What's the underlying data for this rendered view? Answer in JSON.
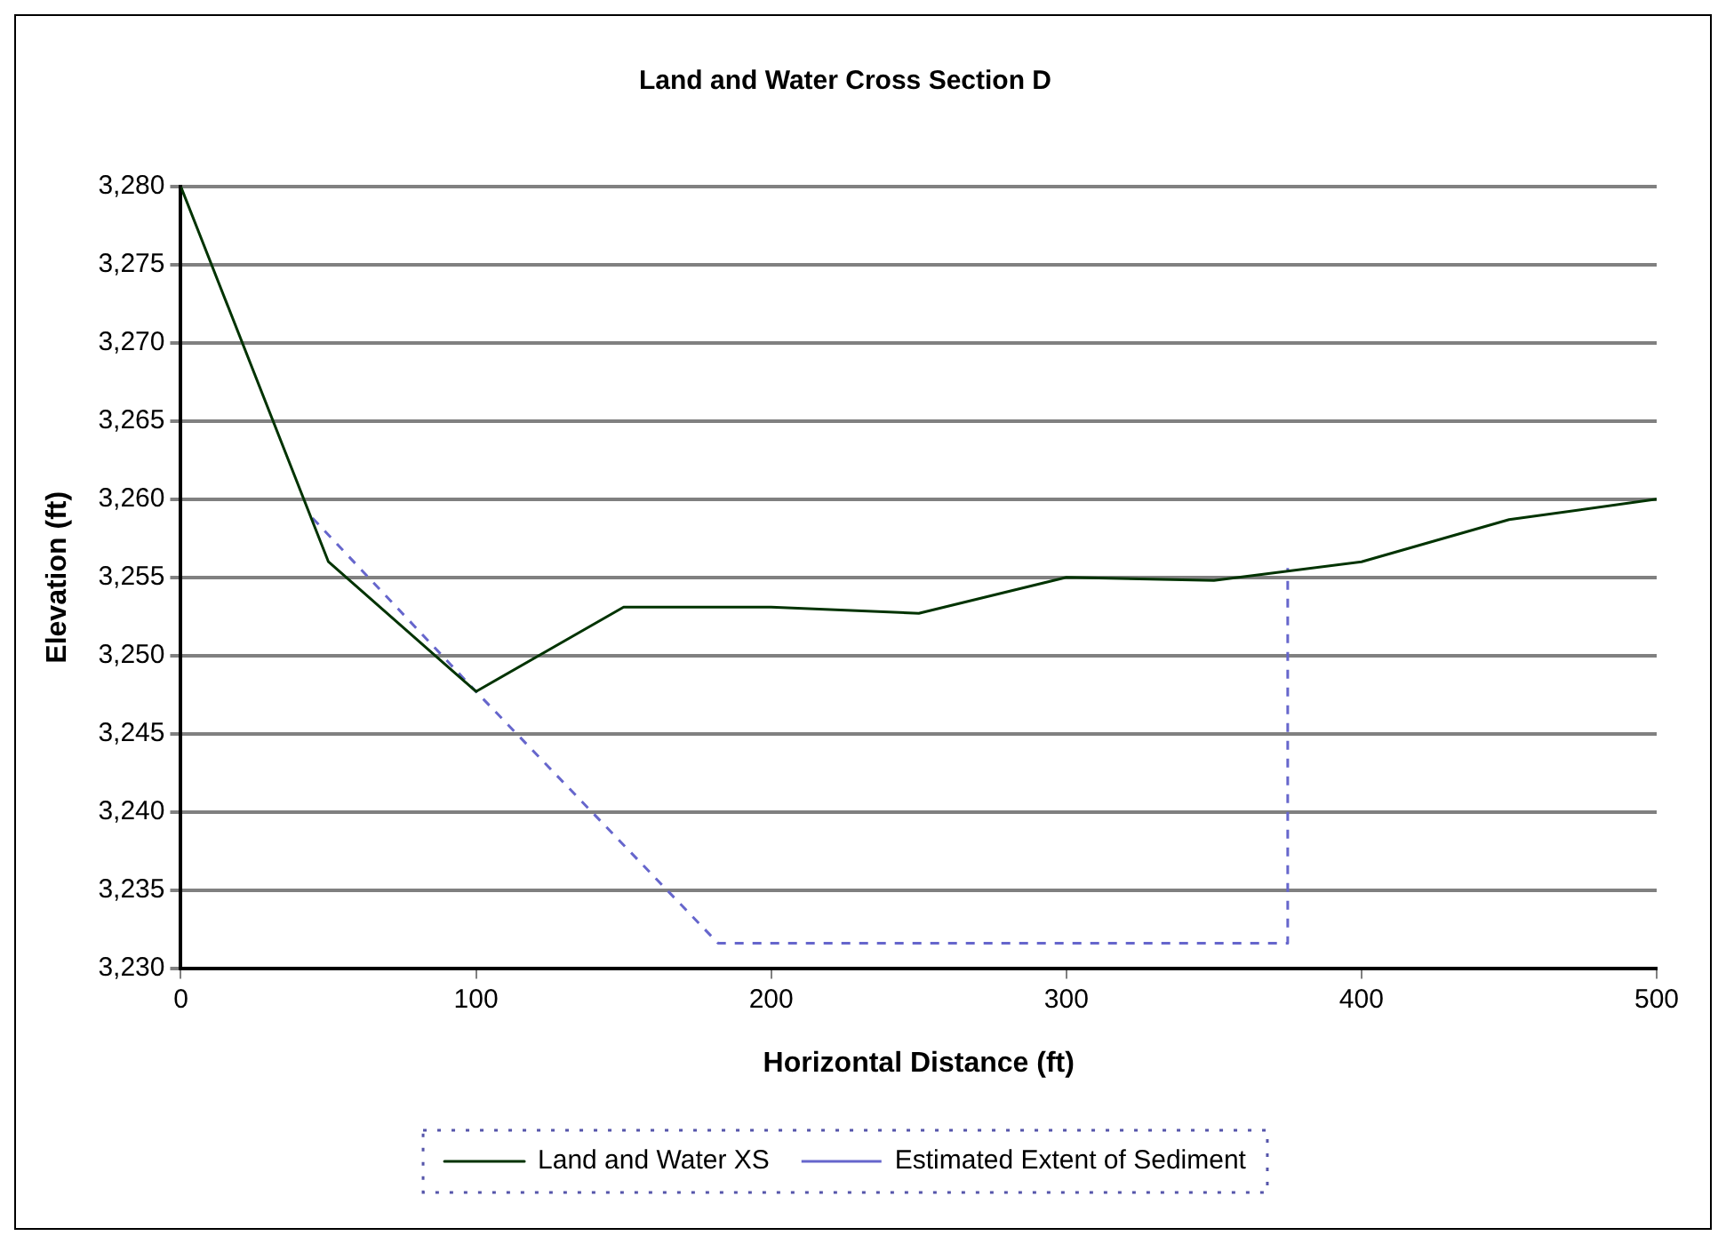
{
  "chart_data": {
    "type": "line",
    "title": "Land and Water Cross Section D",
    "xlabel": "Horizontal Distance (ft)",
    "ylabel": "Elevation (ft)",
    "xlim": [
      0,
      500
    ],
    "xticks": [
      0,
      100,
      200,
      300,
      400,
      500
    ],
    "ylim": [
      3230,
      3280
    ],
    "yticks": [
      {
        "value": 3230,
        "label": "3,230"
      },
      {
        "value": 3235,
        "label": "3,235"
      },
      {
        "value": 3240,
        "label": "3,240"
      },
      {
        "value": 3245,
        "label": "3,245"
      },
      {
        "value": 3250,
        "label": "3,250"
      },
      {
        "value": 3255,
        "label": "3,255"
      },
      {
        "value": 3260,
        "label": "3,260"
      },
      {
        "value": 3265,
        "label": "3,265"
      },
      {
        "value": 3270,
        "label": "3,270"
      },
      {
        "value": 3275,
        "label": "3,275"
      },
      {
        "value": 3280,
        "label": "3,280"
      }
    ],
    "grid": "y",
    "legend": "bottom",
    "marker": "none",
    "series": [
      {
        "name": "Land and Water XS",
        "color": "#003300",
        "line_style": "solid",
        "x": [
          0,
          50,
          100,
          150,
          200,
          250,
          300,
          350,
          400,
          450,
          500
        ],
        "values": [
          3280,
          3256,
          3247.7,
          3253.1,
          3253.1,
          3252.7,
          3255,
          3254.8,
          3256,
          3258.7,
          3260
        ]
      },
      {
        "name": "Estimated Extent of Sediment",
        "color": "#6666cc",
        "line_style": "dashed",
        "x": [
          44.6,
          100,
          182,
          375,
          375
        ],
        "values": [
          3258.8,
          3247.7,
          3231.6,
          3231.6,
          3255.6
        ]
      }
    ]
  }
}
